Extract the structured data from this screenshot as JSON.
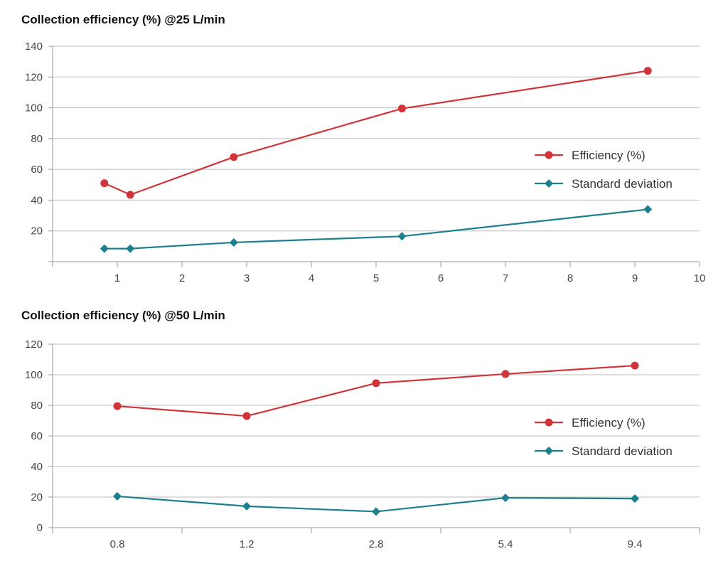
{
  "chart_data": [
    {
      "type": "line",
      "title": "Collection efficiency (%) @25 L/min",
      "x_axis": "numeric",
      "xlim": [
        0,
        10
      ],
      "ylim": [
        0,
        140
      ],
      "xticks": [
        1,
        2,
        3,
        4,
        5,
        6,
        7,
        8,
        9,
        10
      ],
      "yticks": [
        0,
        20,
        40,
        60,
        80,
        100,
        120,
        140
      ],
      "ytick_labels": [
        "",
        "20",
        "40",
        "60",
        "80",
        "100",
        "120",
        "140"
      ],
      "grid": "horizontal",
      "legend": "right",
      "x": [
        0.8,
        1.2,
        2.8,
        5.4,
        9.2
      ],
      "series": [
        {
          "name": "Efficiency (%)",
          "values": [
            51,
            43.5,
            68,
            99.5,
            124
          ],
          "color": "#d13438",
          "marker": "circle"
        },
        {
          "name": "Standard deviation",
          "values": [
            8.5,
            8.5,
            12.5,
            16.5,
            34
          ],
          "color": "#1b7f8e",
          "marker": "diamond"
        }
      ]
    },
    {
      "type": "line",
      "title": "Collection efficiency (%) @50 L/min",
      "x_axis": "category",
      "categories": [
        "0.8",
        "1.2",
        "2.8",
        "5.4",
        "9.4"
      ],
      "ylim": [
        0,
        120
      ],
      "yticks": [
        0,
        20,
        40,
        60,
        80,
        100,
        120
      ],
      "ytick_labels": [
        "0",
        "20",
        "40",
        "60",
        "80",
        "100",
        "120"
      ],
      "grid": "horizontal",
      "legend": "right",
      "series": [
        {
          "name": "Efficiency (%)",
          "values": [
            79.5,
            73,
            94.5,
            100.5,
            106
          ],
          "color": "#d13438",
          "marker": "circle"
        },
        {
          "name": "Standard deviation",
          "values": [
            20.5,
            14,
            10.5,
            19.5,
            19
          ],
          "color": "#1b7f8e",
          "marker": "diamond"
        }
      ]
    }
  ]
}
